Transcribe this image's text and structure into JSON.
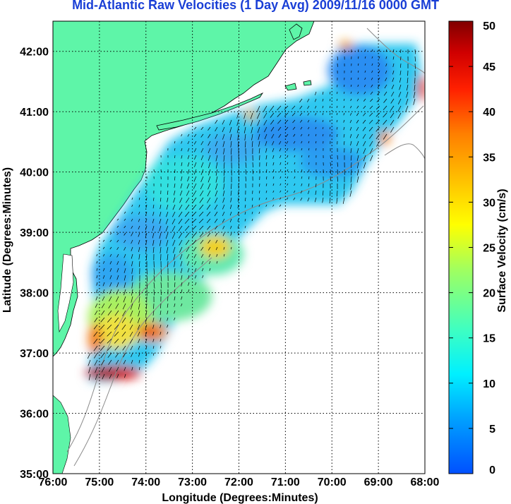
{
  "title": "Mid-Atlantic Raw Velocities (1 Day Avg) 2009/11/16 0000 GMT",
  "chart_data": {
    "type": "heatmap",
    "xlabel": "Longitude (Degrees:Minutes)",
    "ylabel": "Latitude (Degrees:Minutes)",
    "x_ticks": [
      "76:00",
      "75:00",
      "74:00",
      "73:00",
      "72:00",
      "71:00",
      "70:00",
      "69:00",
      "68:00"
    ],
    "y_ticks": [
      "42:00",
      "41:00",
      "40:00",
      "39:00",
      "38:00",
      "37:00",
      "36:00",
      "35:00"
    ],
    "xlim": [
      -76,
      -68
    ],
    "ylim": [
      35,
      42.5
    ],
    "grid": true,
    "colorbar": {
      "label": "Surface Velocity (cm/s)",
      "ticks": [
        "50",
        "45",
        "40",
        "35",
        "30",
        "25",
        "20",
        "15",
        "10",
        "5",
        "0"
      ],
      "range": [
        0,
        50
      ],
      "colormap": "jet"
    },
    "land_color": "#5ef5a8"
  }
}
